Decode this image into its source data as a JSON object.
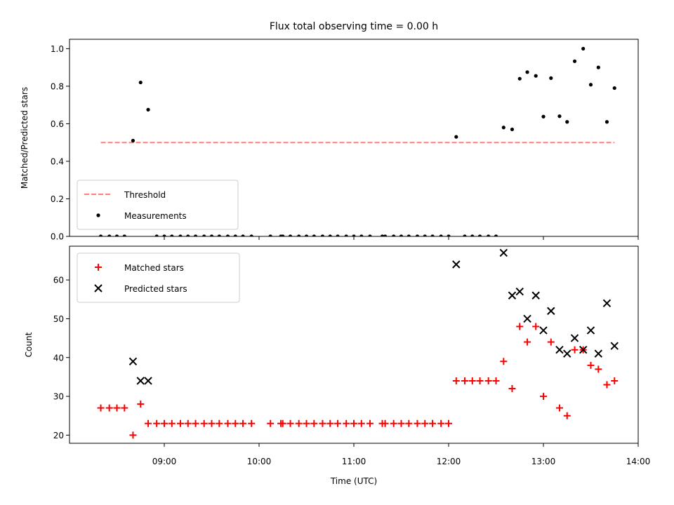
{
  "chart_data": {
    "type": "scatter",
    "title": "Flux total observing time = 0.00 h",
    "xlabel": "Time (UTC)",
    "x_ticks": [
      "09:00",
      "10:00",
      "11:00",
      "12:00",
      "13:00",
      "14:00"
    ],
    "x_tick_values": [
      9,
      10,
      11,
      12,
      13,
      14
    ],
    "xlim": [
      8.0,
      14.0
    ],
    "panels": [
      {
        "ylabel": "Matched/Predicted stars",
        "ylim": [
          0.0,
          1.05
        ],
        "y_ticks": [
          "0.0",
          "0.2",
          "0.4",
          "0.6",
          "0.8",
          "1.0"
        ],
        "y_tick_values": [
          0,
          0.2,
          0.4,
          0.6,
          0.8,
          1.0
        ],
        "legend_position": "bottom-left",
        "series": [
          {
            "name": "Threshold",
            "kind": "line",
            "color": "#ff7f7f",
            "dashed": true,
            "x": [
              8.33,
              13.75
            ],
            "y": [
              0.5,
              0.5
            ]
          },
          {
            "name": "Measurements",
            "kind": "scatter",
            "marker": "dot",
            "color": "#000000",
            "x": [
              8.33,
              8.42,
              8.5,
              8.58,
              8.67,
              8.75,
              8.83,
              8.92,
              9.0,
              9.08,
              9.17,
              9.25,
              9.33,
              9.42,
              9.5,
              9.58,
              9.67,
              9.75,
              9.83,
              9.92,
              10.12,
              10.23,
              10.25,
              10.33,
              10.42,
              10.5,
              10.58,
              10.67,
              10.75,
              10.83,
              10.92,
              11.0,
              11.08,
              11.17,
              11.3,
              11.33,
              11.42,
              11.5,
              11.58,
              11.67,
              11.75,
              11.83,
              11.92,
              12.0,
              12.08,
              12.17,
              12.25,
              12.33,
              12.42,
              12.5,
              12.58,
              12.67,
              12.75,
              12.83,
              12.92,
              13.0,
              13.08,
              13.17,
              13.25,
              13.33,
              13.42,
              13.5,
              13.58,
              13.67,
              13.75
            ],
            "y": [
              0,
              0,
              0,
              0,
              0.51,
              0.82,
              0.675,
              0,
              0,
              0,
              0,
              0,
              0,
              0,
              0,
              0,
              0,
              0,
              0,
              0,
              0,
              0,
              0,
              0,
              0,
              0,
              0,
              0,
              0,
              0,
              0,
              0,
              0,
              0,
              0,
              0,
              0,
              0,
              0,
              0,
              0,
              0,
              0,
              0,
              0.53,
              0,
              0,
              0,
              0,
              0,
              0.58,
              0.57,
              0.84,
              0.875,
              0.855,
              0.638,
              0.843,
              0.64,
              0.61,
              0.933,
              1.0,
              0.808,
              0.9,
              0.61,
              0.79
            ]
          }
        ]
      },
      {
        "ylabel": "Count",
        "ylim": [
          17.9,
          68.7
        ],
        "y_ticks": [
          "20",
          "30",
          "40",
          "50",
          "60"
        ],
        "y_tick_values": [
          20,
          30,
          40,
          50,
          60
        ],
        "legend_position": "top-left",
        "series": [
          {
            "name": "Matched stars",
            "kind": "scatter",
            "marker": "plus",
            "color": "#ff0000",
            "x": [
              8.33,
              8.42,
              8.5,
              8.58,
              8.67,
              8.75,
              8.83,
              8.92,
              9.0,
              9.08,
              9.17,
              9.25,
              9.33,
              9.42,
              9.5,
              9.58,
              9.67,
              9.75,
              9.83,
              9.92,
              10.12,
              10.23,
              10.25,
              10.33,
              10.42,
              10.5,
              10.58,
              10.67,
              10.75,
              10.83,
              10.92,
              11.0,
              11.08,
              11.17,
              11.3,
              11.33,
              11.42,
              11.5,
              11.58,
              11.67,
              11.75,
              11.83,
              11.92,
              12.0,
              12.08,
              12.17,
              12.25,
              12.33,
              12.42,
              12.5,
              12.58,
              12.67,
              12.75,
              12.83,
              12.92,
              13.0,
              13.08,
              13.17,
              13.25,
              13.33,
              13.42,
              13.5,
              13.58,
              13.67,
              13.75
            ],
            "y": [
              27,
              27,
              27,
              27,
              20,
              28,
              23,
              23,
              23,
              23,
              23,
              23,
              23,
              23,
              23,
              23,
              23,
              23,
              23,
              23,
              23,
              23,
              23,
              23,
              23,
              23,
              23,
              23,
              23,
              23,
              23,
              23,
              23,
              23,
              23,
              23,
              23,
              23,
              23,
              23,
              23,
              23,
              23,
              23,
              34,
              34,
              34,
              34,
              34,
              34,
              39,
              32,
              48,
              44,
              48,
              30,
              44,
              27,
              25,
              42,
              42,
              38,
              37,
              33,
              34
            ]
          },
          {
            "name": "Predicted stars",
            "kind": "scatter",
            "marker": "x",
            "color": "#000000",
            "x": [
              8.67,
              8.75,
              8.83,
              12.08,
              12.58,
              12.67,
              12.75,
              12.83,
              12.92,
              13.0,
              13.08,
              13.17,
              13.25,
              13.33,
              13.42,
              13.5,
              13.58,
              13.67,
              13.75
            ],
            "y": [
              39,
              34,
              34,
              64,
              67,
              56,
              57,
              50,
              56,
              47,
              52,
              42,
              41,
              45,
              42,
              47,
              41,
              54,
              43
            ]
          }
        ]
      }
    ]
  }
}
